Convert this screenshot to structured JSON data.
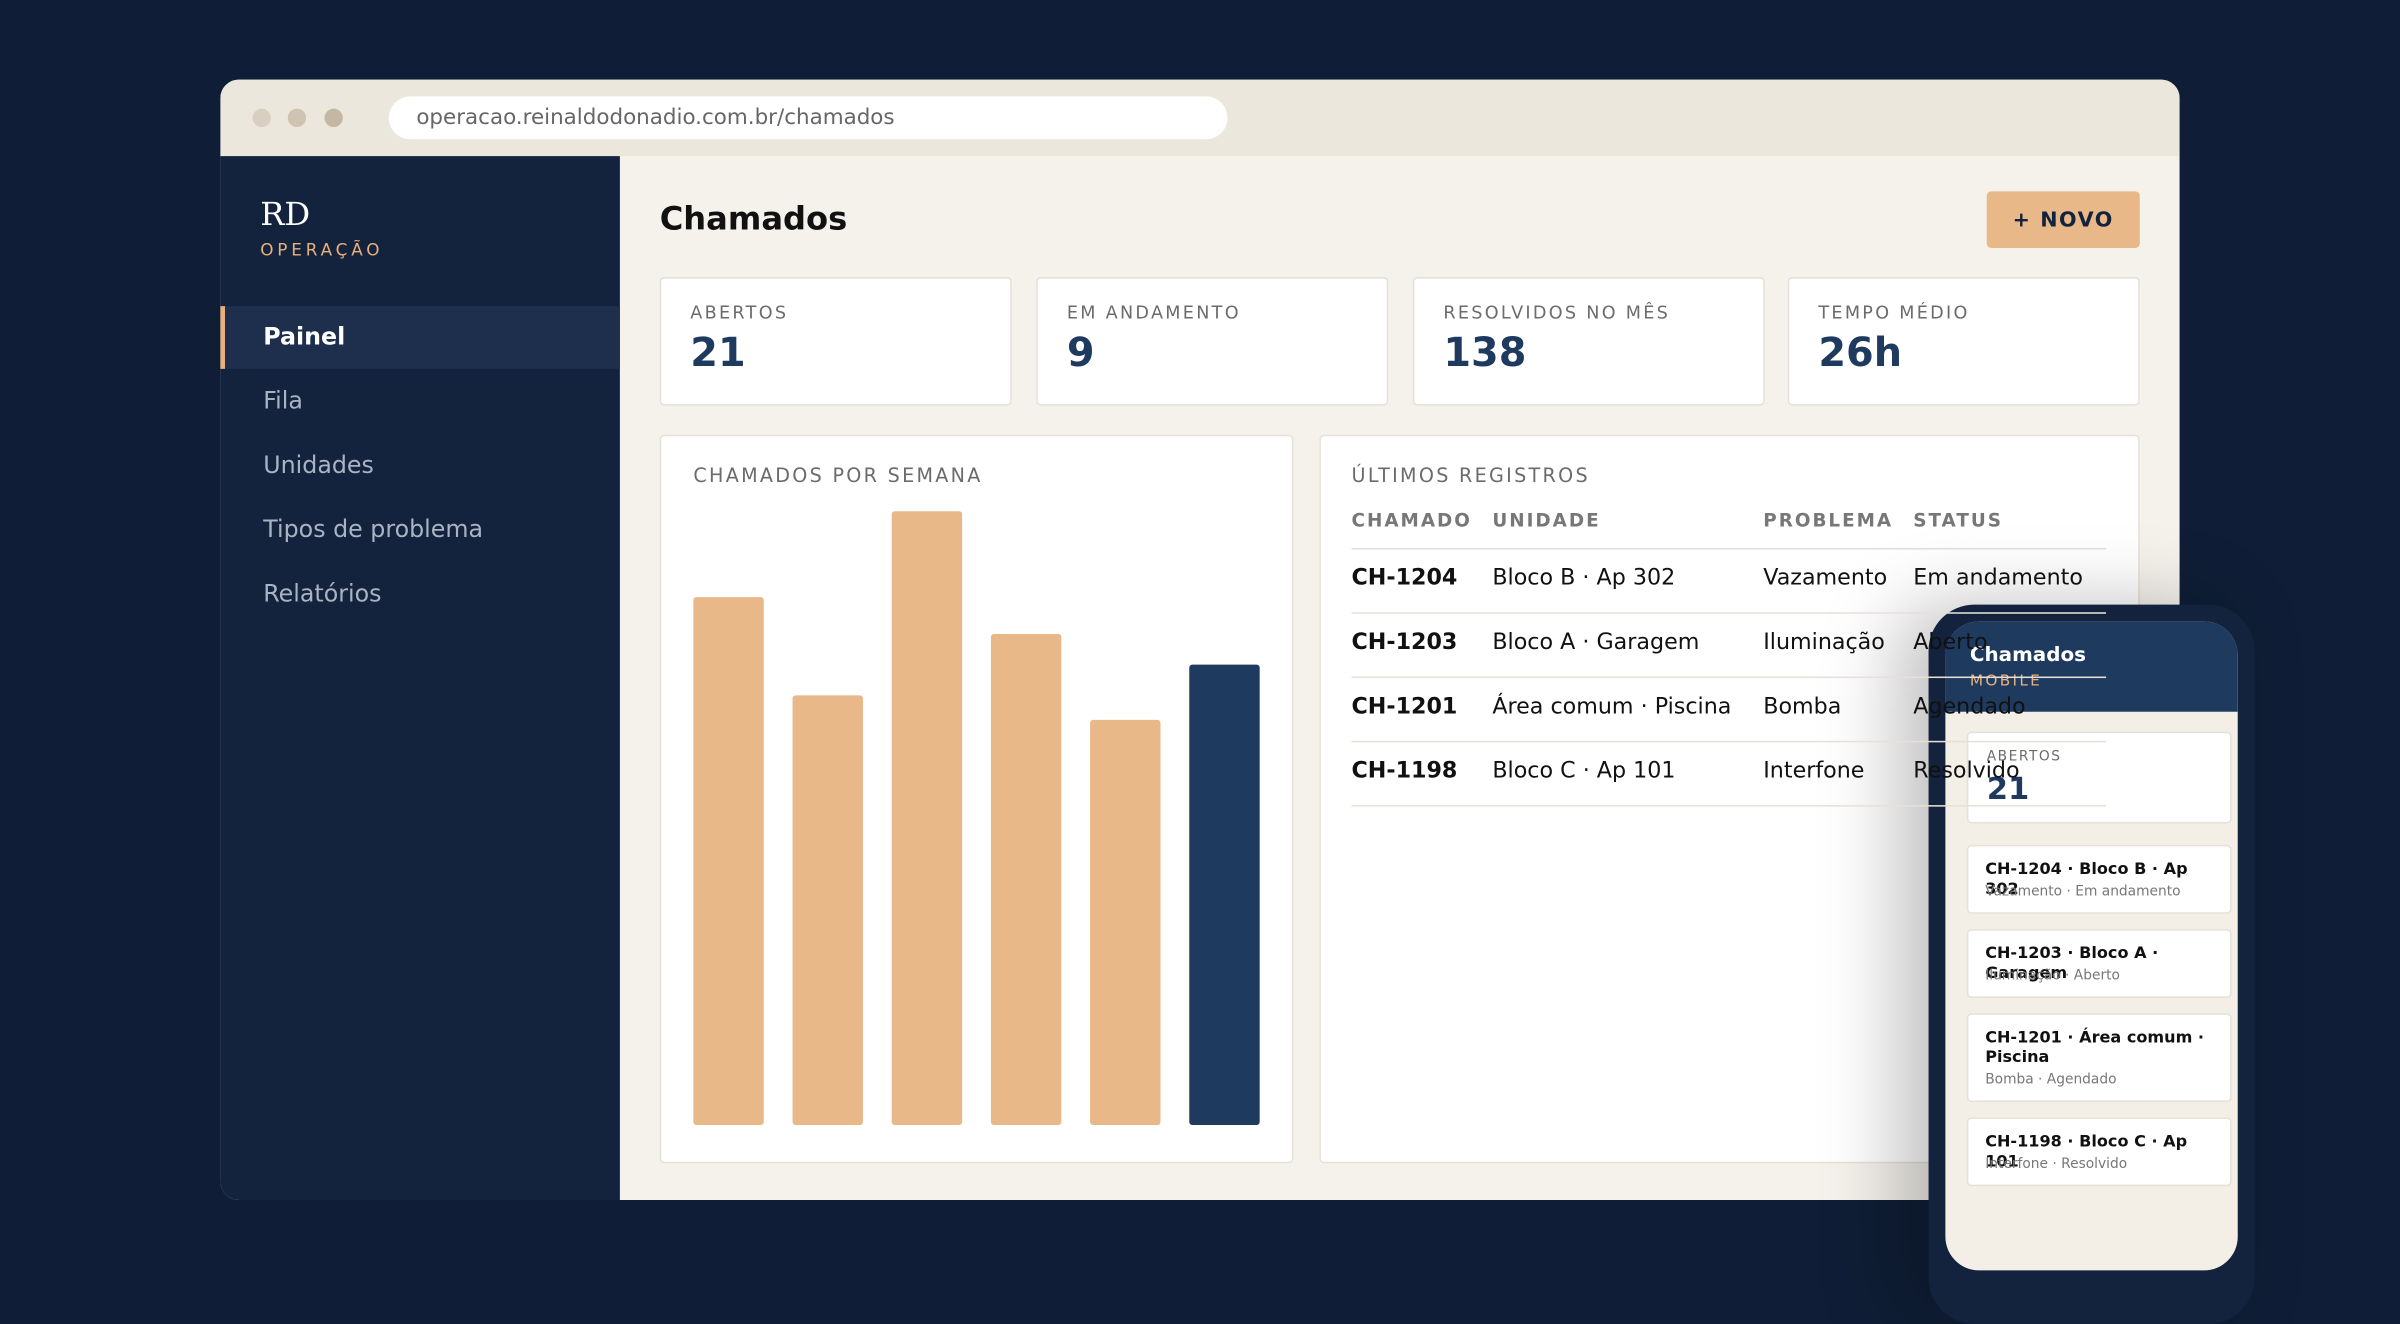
{
  "browser": {
    "url": "operacao.reinaldodonadio.com.br/chamados"
  },
  "sidebar": {
    "logo": "RD",
    "subtitle": "OPERAÇÃO",
    "nav": [
      "Painel",
      "Fila",
      "Unidades",
      "Tipos de problema",
      "Relatórios"
    ]
  },
  "header": {
    "title": "Chamados",
    "button": "+ NOVO"
  },
  "kpis": [
    {
      "label": "ABERTOS",
      "value": "21"
    },
    {
      "label": "EM ANDAMENTO",
      "value": "9"
    },
    {
      "label": "RESOLVIDOS NO MÊS",
      "value": "138"
    },
    {
      "label": "TEMPO MÉDIO",
      "value": "26h"
    }
  ],
  "chart_data": {
    "type": "bar",
    "title": "CHAMADOS POR SEMANA",
    "values": [
      86,
      70,
      100,
      80,
      66,
      75
    ],
    "colors": [
      "#e8b888",
      "#e8b888",
      "#e8b888",
      "#e8b888",
      "#e8b888",
      "#1e3a5f"
    ],
    "ylim": [
      0,
      100
    ]
  },
  "table": {
    "title": "ÚLTIMOS REGISTROS",
    "headers": [
      "CHAMADO",
      "UNIDADE",
      "PROBLEMA",
      "STATUS"
    ],
    "rows": [
      [
        "CH-1204",
        "Bloco B · Ap 302",
        "Vazamento",
        "Em andamento"
      ],
      [
        "CH-1203",
        "Bloco A · Garagem",
        "Iluminação",
        "Aberto"
      ],
      [
        "CH-1201",
        "Área comum · Piscina",
        "Bomba",
        "Agendado"
      ],
      [
        "CH-1198",
        "Bloco C · Ap 101",
        "Interfone",
        "Resolvido"
      ]
    ]
  },
  "mobile": {
    "title": "Chamados",
    "subtitle": "MOBILE",
    "kpi_label": "ABERTOS",
    "kpi_value": "21",
    "items": [
      {
        "title": "CH-1204 · Bloco B · Ap 302",
        "detail": "Vazamento · Em andamento"
      },
      {
        "title": "CH-1203 · Bloco A · Garagem",
        "detail": "Iluminação · Aberto"
      },
      {
        "title": "CH-1201 · Área comum · Piscina",
        "detail": "Bomba · Agendado"
      },
      {
        "title": "CH-1198 · Bloco C · Ap 101",
        "detail": "Interfone · Resolvido"
      }
    ]
  }
}
